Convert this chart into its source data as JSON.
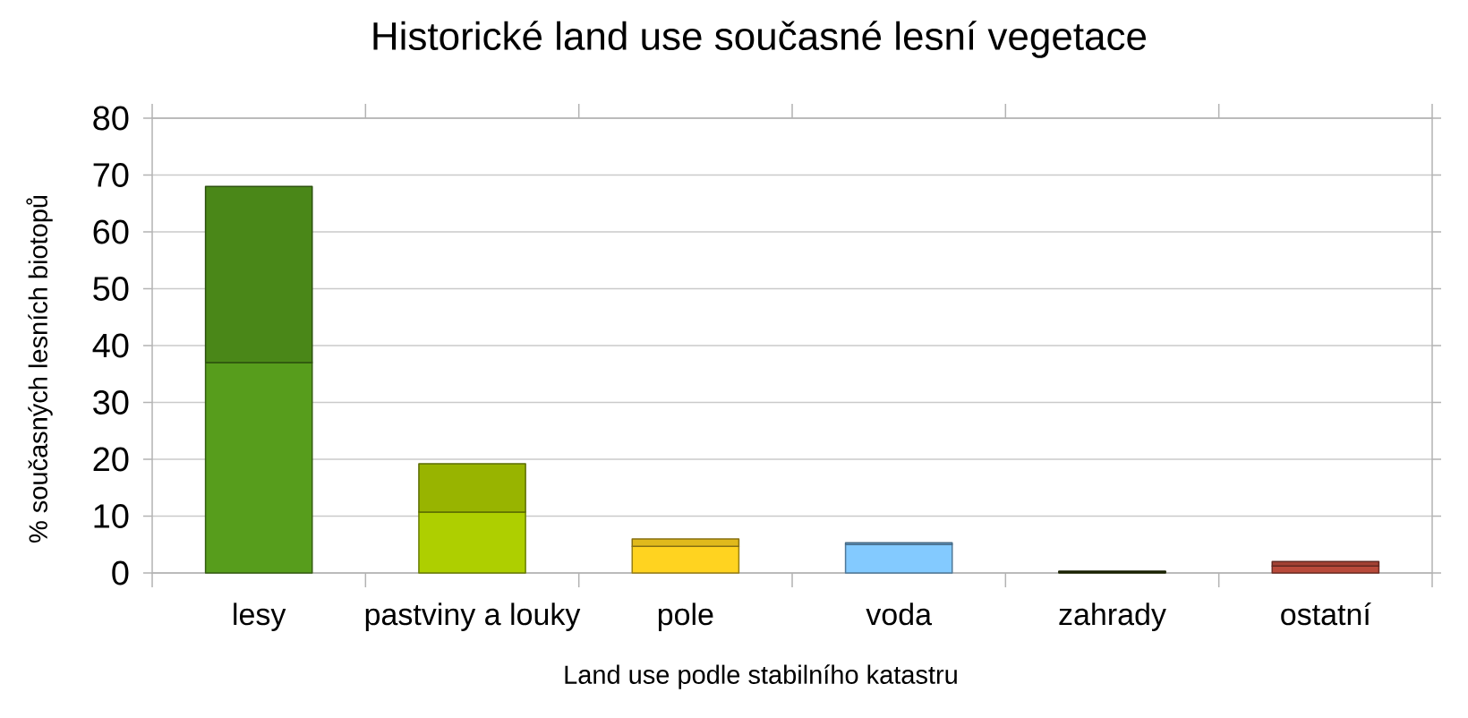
{
  "chart_data": {
    "type": "bar",
    "title": "Historické land use současné lesní vegetace",
    "xlabel": "Land use podle stabilního katastru",
    "ylabel": "% současných lesních biotopů",
    "categories": [
      "lesy",
      "pastviny a louky",
      "pole",
      "voda",
      "zahrady",
      "ostatní"
    ],
    "stacked": true,
    "series": [
      {
        "colors": [
          "#579d1c",
          "#aecf00",
          "#ffd320",
          "#83caff",
          "#314004",
          "#b94a3a"
        ],
        "values": [
          37,
          10.7,
          4.7,
          5.0,
          0.2,
          1.2
        ]
      },
      {
        "colors": [
          "#4a8718",
          "#98b400",
          "#e0b91c",
          "#73b1e0",
          "#2a3703",
          "#a24133"
        ],
        "values": [
          31,
          8.5,
          1.3,
          0.3,
          0.1,
          0.8
        ]
      }
    ],
    "ylim": [
      0,
      80
    ],
    "yticks": [
      0,
      10,
      20,
      30,
      40,
      50,
      60,
      70,
      80
    ],
    "grid": "y"
  }
}
